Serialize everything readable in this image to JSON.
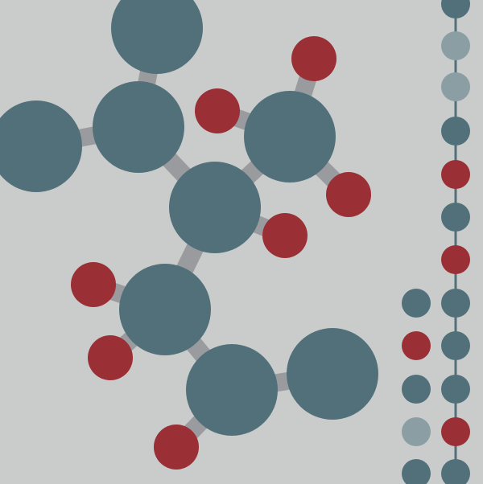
{
  "illustration": {
    "subject": "molecule",
    "palette": {
      "background": "#c9cccb",
      "atom_primary": "#52707a",
      "atom_accent": "#9a3035",
      "atom_faded": "#8a9ea3",
      "bond": "#9a9b9e",
      "chain_line": "#52707a"
    }
  }
}
